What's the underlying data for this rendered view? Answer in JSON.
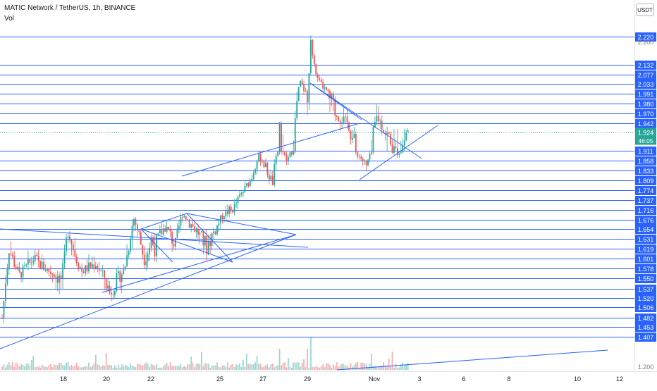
{
  "header": {
    "symbol_title": "MATIC Network / TetherUS, 1h, BINANCE",
    "volume_label": "Vol",
    "currency_button": "USDT"
  },
  "colors": {
    "up_candle": "#26a69a",
    "down_candle": "#ef5350",
    "drawing_lines": "#2962ff",
    "price_tag": "#2962ff",
    "current_price_tag": "#26a69a",
    "axis_text": "#131722"
  },
  "chart_data": {
    "type": "candlestick",
    "symbol": "MATIC Network / TetherUS",
    "interval": "1h",
    "exchange": "BINANCE",
    "x_tick_labels": [
      "18",
      "20",
      "22",
      "25",
      "27",
      "29",
      "Nov",
      "3",
      "6",
      "8",
      "10",
      "12"
    ],
    "y_tick_labels": [
      "2.200",
      "1.200"
    ],
    "horizontal_level_labels": [
      "2.220",
      "2.132",
      "2.077",
      "2.033",
      "1.991",
      "1.980",
      "1.970",
      "1.942",
      "1.911",
      "1.858",
      "1.833",
      "1.809",
      "1.774",
      "1.737",
      "1.716",
      "1.676",
      "1.654",
      "1.631",
      "1.619",
      "1.601",
      "1.578",
      "1.550",
      "1.537",
      "1.520",
      "1.506",
      "1.482",
      "1.453",
      "1.407"
    ],
    "current_price": "1.924",
    "countdown": "46:05",
    "price_range": [
      1.4,
      2.24
    ],
    "volume_panel": true
  }
}
